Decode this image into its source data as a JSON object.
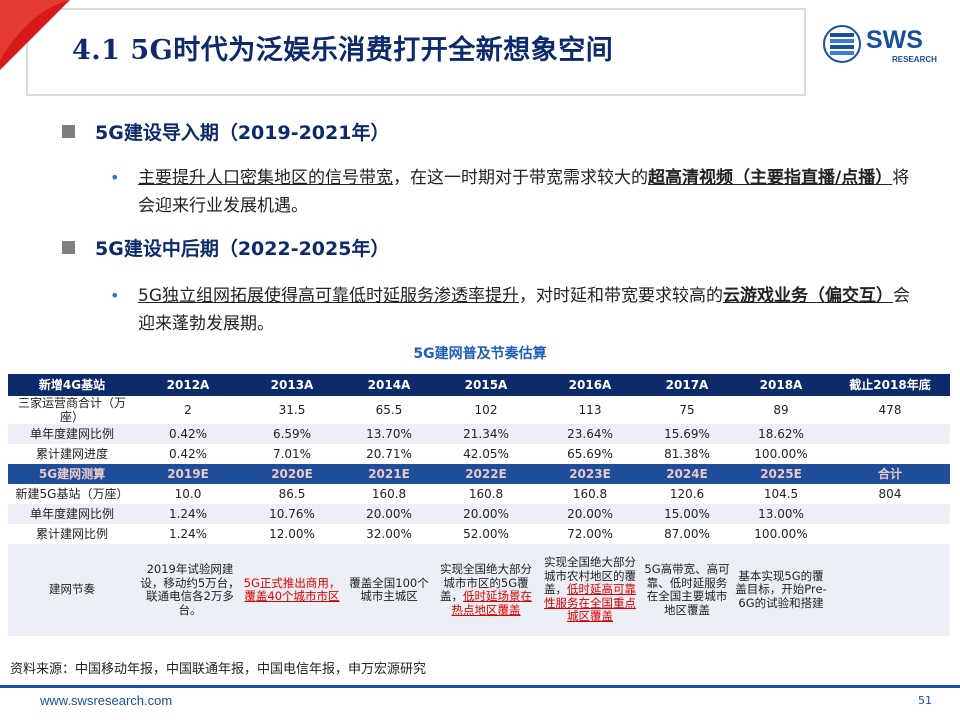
{
  "header": {
    "title": "4.1 5G时代为泛娱乐消费打开全新想象空间",
    "logo_text": "SWS",
    "logo_sub": "RESEARCH",
    "accent_color": "#d7191c",
    "brand_color": "#1b4fa0"
  },
  "sections": [
    {
      "heading": "5G建设导入期（2019-2021年）",
      "bullet": {
        "part1": "主要提升人口密集地区的信号带宽",
        "part2": "，在这一时期对于带宽需求较大的",
        "part3": "超高清视频（主要指直播/点播）",
        "part4": "将会迎来行业发展机遇。"
      }
    },
    {
      "heading": "5G建设中后期（2022-2025年）",
      "bullet": {
        "part1": "5G独立组网拓展使得高可靠低时延服务渗透率提升",
        "part2": "，对时延和带宽要求较高的",
        "part3": "云游戏业务（偏交互）",
        "part4": "会迎来蓬勃发展期。"
      }
    }
  ],
  "table": {
    "title": "5G建网普及节奏估算",
    "header_4g": [
      "新增4G基站",
      "2012A",
      "2013A",
      "2014A",
      "2015A",
      "2016A",
      "2017A",
      "2018A",
      "截止2018年底"
    ],
    "rows_4g": [
      [
        "三家运营商合计（万座）",
        "2",
        "31.5",
        "65.5",
        "102",
        "113",
        "75",
        "89",
        "478"
      ],
      [
        "单年度建网比例",
        "0.42%",
        "6.59%",
        "13.70%",
        "21.34%",
        "23.64%",
        "15.69%",
        "18.62%",
        ""
      ],
      [
        "累计建网进度",
        "0.42%",
        "7.01%",
        "20.71%",
        "42.05%",
        "65.69%",
        "81.38%",
        "100.00%",
        ""
      ]
    ],
    "header_5g": [
      "5G建网测算",
      "2019E",
      "2020E",
      "2021E",
      "2022E",
      "2023E",
      "2024E",
      "2025E",
      "合计"
    ],
    "rows_5g": [
      [
        "新建5G基站（万座）",
        "10.0",
        "86.5",
        "160.8",
        "160.8",
        "160.8",
        "120.6",
        "104.5",
        "804"
      ],
      [
        "单年度建网比例",
        "1.24%",
        "10.76%",
        "20.00%",
        "20.00%",
        "20.00%",
        "15.00%",
        "13.00%",
        ""
      ],
      [
        "累计建网比例",
        "1.24%",
        "12.00%",
        "32.00%",
        "52.00%",
        "72.00%",
        "87.00%",
        "100.00%",
        ""
      ]
    ],
    "rhythm_label": "建网节奏",
    "rhythm": {
      "c2019": [
        "2019年试验网建设，",
        "移动约5万台，联通电信各2万多台。"
      ],
      "c2020": [
        "5G正式推出商用，",
        "覆盖40个城市市区"
      ],
      "c2021": "覆盖全国100个城市主城区",
      "c2022": [
        "实现全国绝大部分城市市区的5G覆盖，",
        "低时延场景在热点地区覆盖"
      ],
      "c2023": [
        "实现全国绝大部分城市农村地区的覆盖，",
        "低时延高可靠性服务在全国重点城区覆盖"
      ],
      "c2024": "5G高带宽、高可靠、低时延服务在全国主要城市地区覆盖",
      "c2025": "基本实现5G的覆盖目标，开始Pre-6G的试验和搭建"
    }
  },
  "source": "资料来源：中国移动年报，中国联通年报，中国电信年报，申万宏源研究",
  "footer": {
    "url": "www.swsresearch.com",
    "page": "51"
  }
}
